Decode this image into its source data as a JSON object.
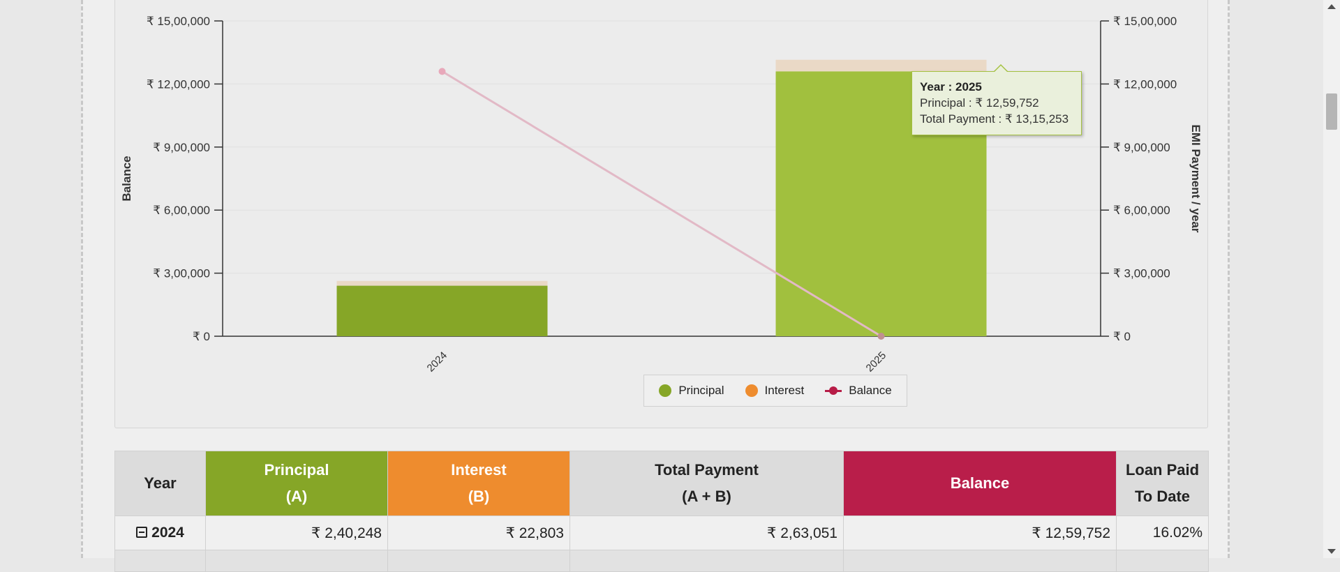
{
  "colors": {
    "principal": "#86a627",
    "principal_highlight": "#a1c03e",
    "interest": "#ee8c2e",
    "interest_bar": "#ead9c6",
    "balance": "#b91e4a",
    "balance_line": "#e2b9c6"
  },
  "chart_data": {
    "type": "bar",
    "stacked": true,
    "categories": [
      "2024",
      "2025"
    ],
    "series": [
      {
        "name": "Principal",
        "type": "bar",
        "axis": "right",
        "values": [
          240248,
          1259752
        ]
      },
      {
        "name": "Interest",
        "type": "bar",
        "axis": "right",
        "values": [
          22803,
          55501
        ]
      },
      {
        "name": "Balance",
        "type": "line",
        "axis": "left",
        "values": [
          1259752,
          0
        ]
      }
    ],
    "y_left": {
      "label": "Balance",
      "range": [
        0,
        1500000
      ],
      "ticks": [
        "₹ 0",
        "₹ 3,00,000",
        "₹ 6,00,000",
        "₹ 9,00,000",
        "₹ 12,00,000",
        "₹ 15,00,000"
      ]
    },
    "y_right": {
      "label": "EMI Payment / year",
      "range": [
        0,
        1500000
      ],
      "ticks": [
        "₹ 0",
        "₹ 3,00,000",
        "₹ 6,00,000",
        "₹ 9,00,000",
        "₹ 12,00,000",
        "₹ 15,00,000"
      ]
    },
    "grid": true,
    "legend_position": "bottom-center",
    "legend": [
      "Principal",
      "Interest",
      "Balance"
    ],
    "tooltip": {
      "title": "Year : 2025",
      "lines": [
        "Principal : ₹ 12,59,752",
        "Total Payment : ₹ 13,15,253"
      ]
    }
  },
  "table": {
    "headers": [
      {
        "line1": "Year",
        "line2": ""
      },
      {
        "line1": "Principal",
        "line2": "(A)"
      },
      {
        "line1": "Interest",
        "line2": "(B)"
      },
      {
        "line1": "Total Payment",
        "line2": "(A + B)"
      },
      {
        "line1": "Balance",
        "line2": ""
      },
      {
        "line1": "Loan Paid",
        "line2": "To Date"
      }
    ],
    "rows": [
      {
        "year": "2024",
        "principal": "₹ 2,40,248",
        "interest": "₹ 22,803",
        "total": "₹ 2,63,051",
        "balance": "₹ 12,59,752",
        "paid": "16.02%"
      }
    ]
  }
}
